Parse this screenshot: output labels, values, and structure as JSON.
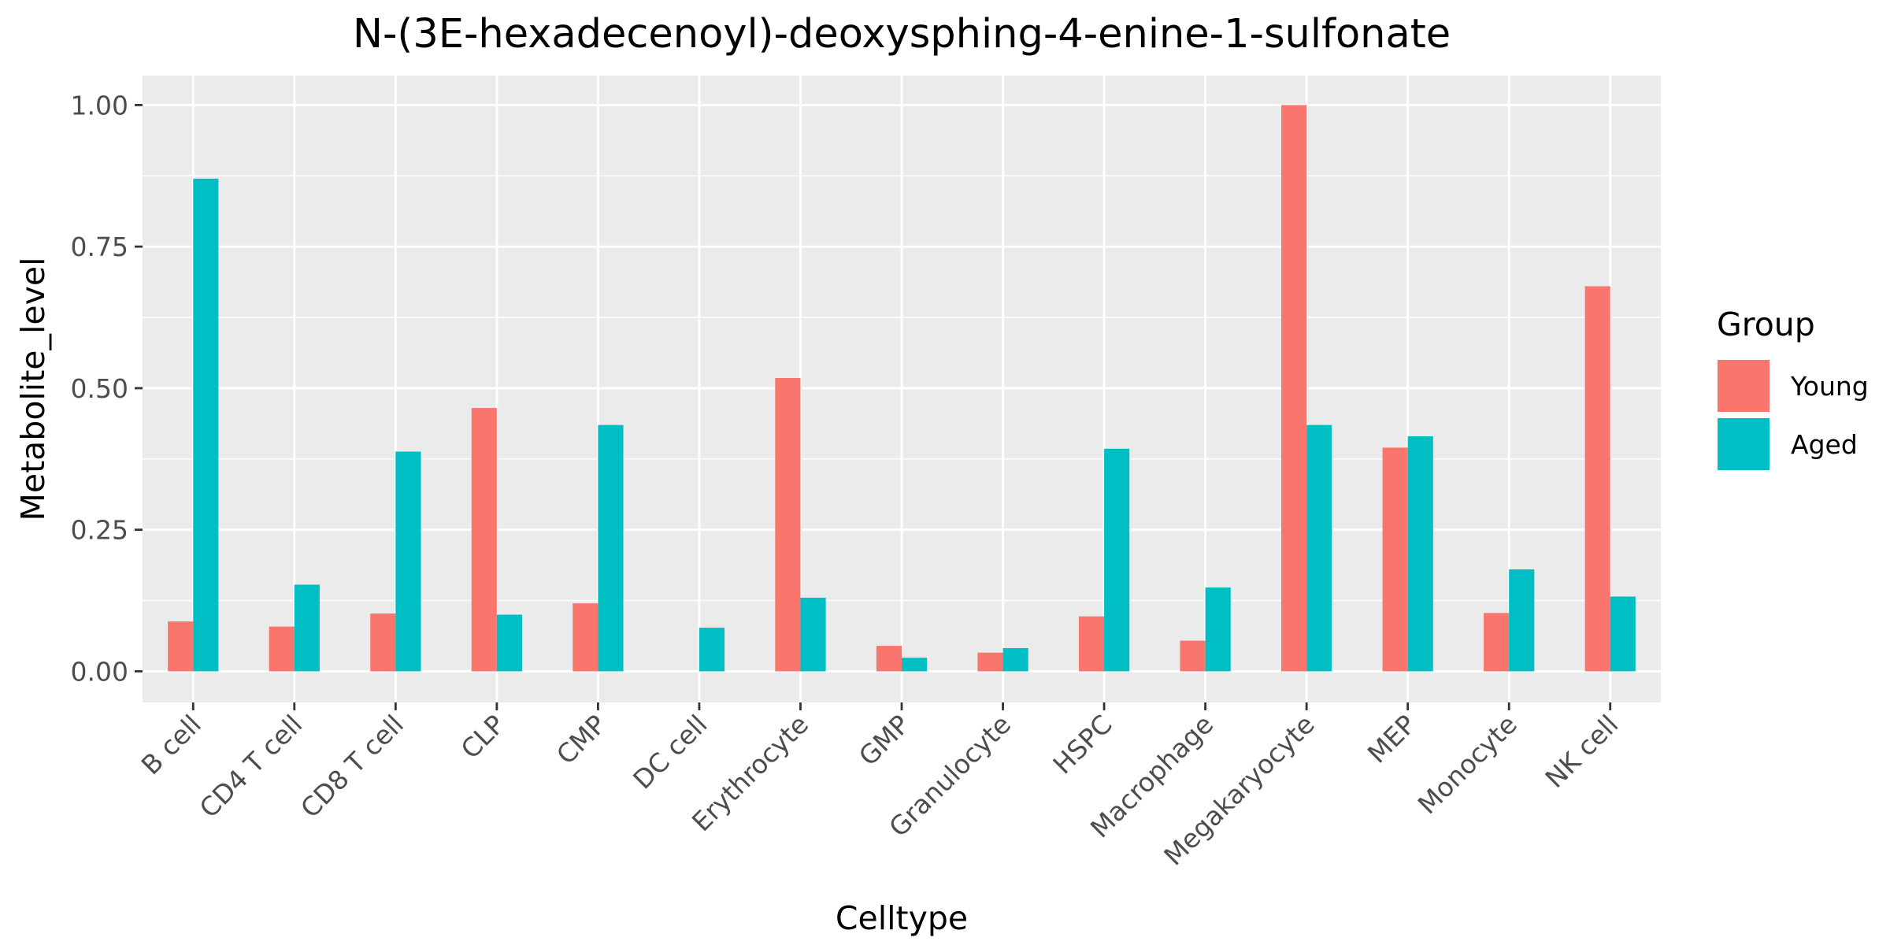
{
  "chart_data": {
    "type": "bar",
    "title": "N-(3E-hexadecenoyl)-deoxysphing-4-enine-1-sulfonate",
    "xlabel": "Celltype",
    "ylabel": "Metabolite_level",
    "ylim": [
      -0.055,
      1.052
    ],
    "yticks": [
      "0.00",
      "0.25",
      "0.50",
      "0.75",
      "1.00"
    ],
    "grid": true,
    "legend": {
      "title": "Group",
      "placement": "right",
      "entries": [
        "Young",
        "Aged"
      ]
    },
    "categories": [
      "B cell",
      "CD4 T cell",
      "CD8 T cell",
      "CLP",
      "CMP",
      "DC cell",
      "Erythrocyte",
      "GMP",
      "Granulocyte",
      "HSPC",
      "Macrophage",
      "Megakaryocyte",
      "MEP",
      "Monocyte",
      "NK cell"
    ],
    "series": [
      {
        "name": "Young",
        "color": "#F8766D",
        "values": [
          0.088,
          0.079,
          0.102,
          0.465,
          0.12,
          0.0,
          0.518,
          0.045,
          0.033,
          0.097,
          0.054,
          1.0,
          0.395,
          0.103,
          0.68
        ]
      },
      {
        "name": "Aged",
        "color": "#00BFC4",
        "values": [
          0.87,
          0.153,
          0.388,
          0.1,
          0.435,
          0.077,
          0.13,
          0.024,
          0.041,
          0.393,
          0.148,
          0.435,
          0.415,
          0.18,
          0.132
        ]
      }
    ],
    "colors": {
      "panel_background": "#EBEBEB",
      "grid": "#FFFFFF",
      "tick_mark": "#333333",
      "tick_text": "#4D4D4D"
    }
  }
}
